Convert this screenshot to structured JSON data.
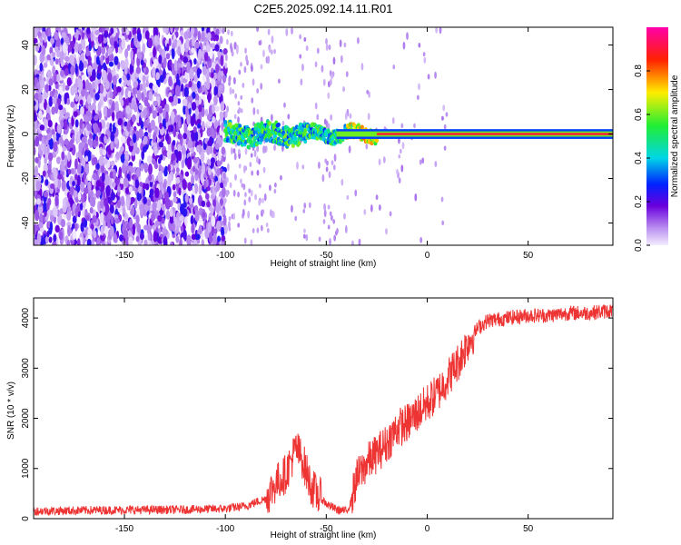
{
  "title": "C2E5.2025.092.14.11.R01",
  "chart_data": [
    {
      "type": "heatmap",
      "xlabel": "Height of straight line (km)",
      "ylabel": "Frequency (Hz)",
      "xlim": [
        -195,
        92
      ],
      "ylim": [
        -50,
        48
      ],
      "xticks": [
        -150,
        -100,
        -50,
        0,
        50
      ],
      "xtick_labels": [
        "-150",
        "-100",
        "-50",
        "0",
        "50"
      ],
      "yticks": [
        -40,
        -20,
        0,
        20,
        40
      ],
      "ytick_labels": [
        "-40",
        "-20",
        "0",
        "20",
        "40"
      ],
      "colorbar": {
        "label": "Normalized spectral amplitude",
        "range": [
          0,
          1
        ],
        "ticks": [
          0.0,
          0.2,
          0.4,
          0.6,
          0.8
        ],
        "tick_labels": [
          "0.0",
          "0.2",
          "0.4",
          "0.6",
          "0.8"
        ]
      },
      "description_regions": {
        "noise_band": {
          "x": [
            -195,
            -100
          ],
          "level": 0.25
        },
        "signal_line": {
          "x": [
            -100,
            92
          ],
          "freq_center": 0
        }
      }
    },
    {
      "type": "line",
      "xlabel": "Height of straight line (km)",
      "ylabel": "SNR (10 * v/v)",
      "xlim": [
        -195,
        92
      ],
      "ylim": [
        0,
        4400
      ],
      "xticks": [
        -150,
        -100,
        -50,
        0,
        50
      ],
      "xtick_labels": [
        "-150",
        "-100",
        "-50",
        "0",
        "50"
      ],
      "yticks": [
        0,
        1000,
        2000,
        3000,
        4000
      ],
      "ytick_labels": [
        "0",
        "1000",
        "2000",
        "3000",
        "4000"
      ],
      "color": "#ee3333",
      "trend_points": {
        "x": [
          -195,
          -160,
          -120,
          -100,
          -90,
          -80,
          -75,
          -70,
          -65,
          -62,
          -58,
          -55,
          -50,
          -45,
          -40,
          -38,
          -35,
          -30,
          -25,
          -20,
          -15,
          -10,
          -5,
          0,
          5,
          10,
          15,
          20,
          25,
          30,
          40,
          50,
          60,
          70,
          80,
          92
        ],
        "y": [
          150,
          170,
          180,
          200,
          250,
          400,
          700,
          900,
          1400,
          1200,
          700,
          500,
          300,
          180,
          150,
          300,
          800,
          1100,
          1300,
          1500,
          1800,
          1900,
          2100,
          2300,
          2500,
          2800,
          3100,
          3500,
          3800,
          3950,
          4000,
          4050,
          4050,
          4100,
          4100,
          4150
        ]
      },
      "noise_amplitude": 250
    }
  ]
}
